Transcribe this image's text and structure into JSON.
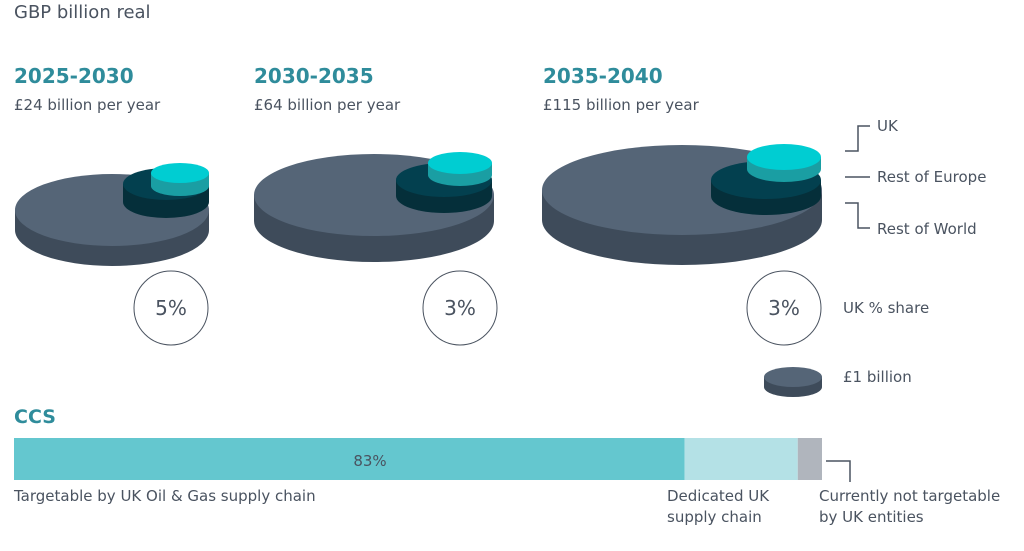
{
  "chart_data": {
    "type": "infographic",
    "unit_label": "GBP billion real",
    "periods": [
      {
        "label": "2025-2030",
        "amount": "£24 billion per year",
        "value": 24,
        "uk_share": "5%"
      },
      {
        "label": "2030-2035",
        "amount": "£64 billion per year",
        "value": 64,
        "uk_share": "3%"
      },
      {
        "label": "2035-2040",
        "amount": "£115 billion per year",
        "value": 115,
        "uk_share": "3%"
      }
    ],
    "legend": {
      "uk": "UK",
      "rest_of_europe": "Rest of Europe",
      "rest_of_world": "Rest of World",
      "uk_share": "UK % share",
      "coin": "£1 billion"
    },
    "colors": {
      "rest_of_world": "#556577",
      "rest_of_europe": "#03404f",
      "uk": "#00cdd2",
      "heading": "#2f8c9b"
    },
    "ccs": {
      "title": "CCS",
      "segments": [
        {
          "label": "Targetable by UK Oil & Gas supply chain",
          "value": 83,
          "value_label": "83%",
          "color": "#64c7cf"
        },
        {
          "label": "Dedicated UK supply chain",
          "value": 14,
          "color": "#b4e1e6"
        },
        {
          "label": "Currently not targetable by UK entities",
          "value": 3,
          "color": "#b0b5bd"
        }
      ]
    }
  }
}
